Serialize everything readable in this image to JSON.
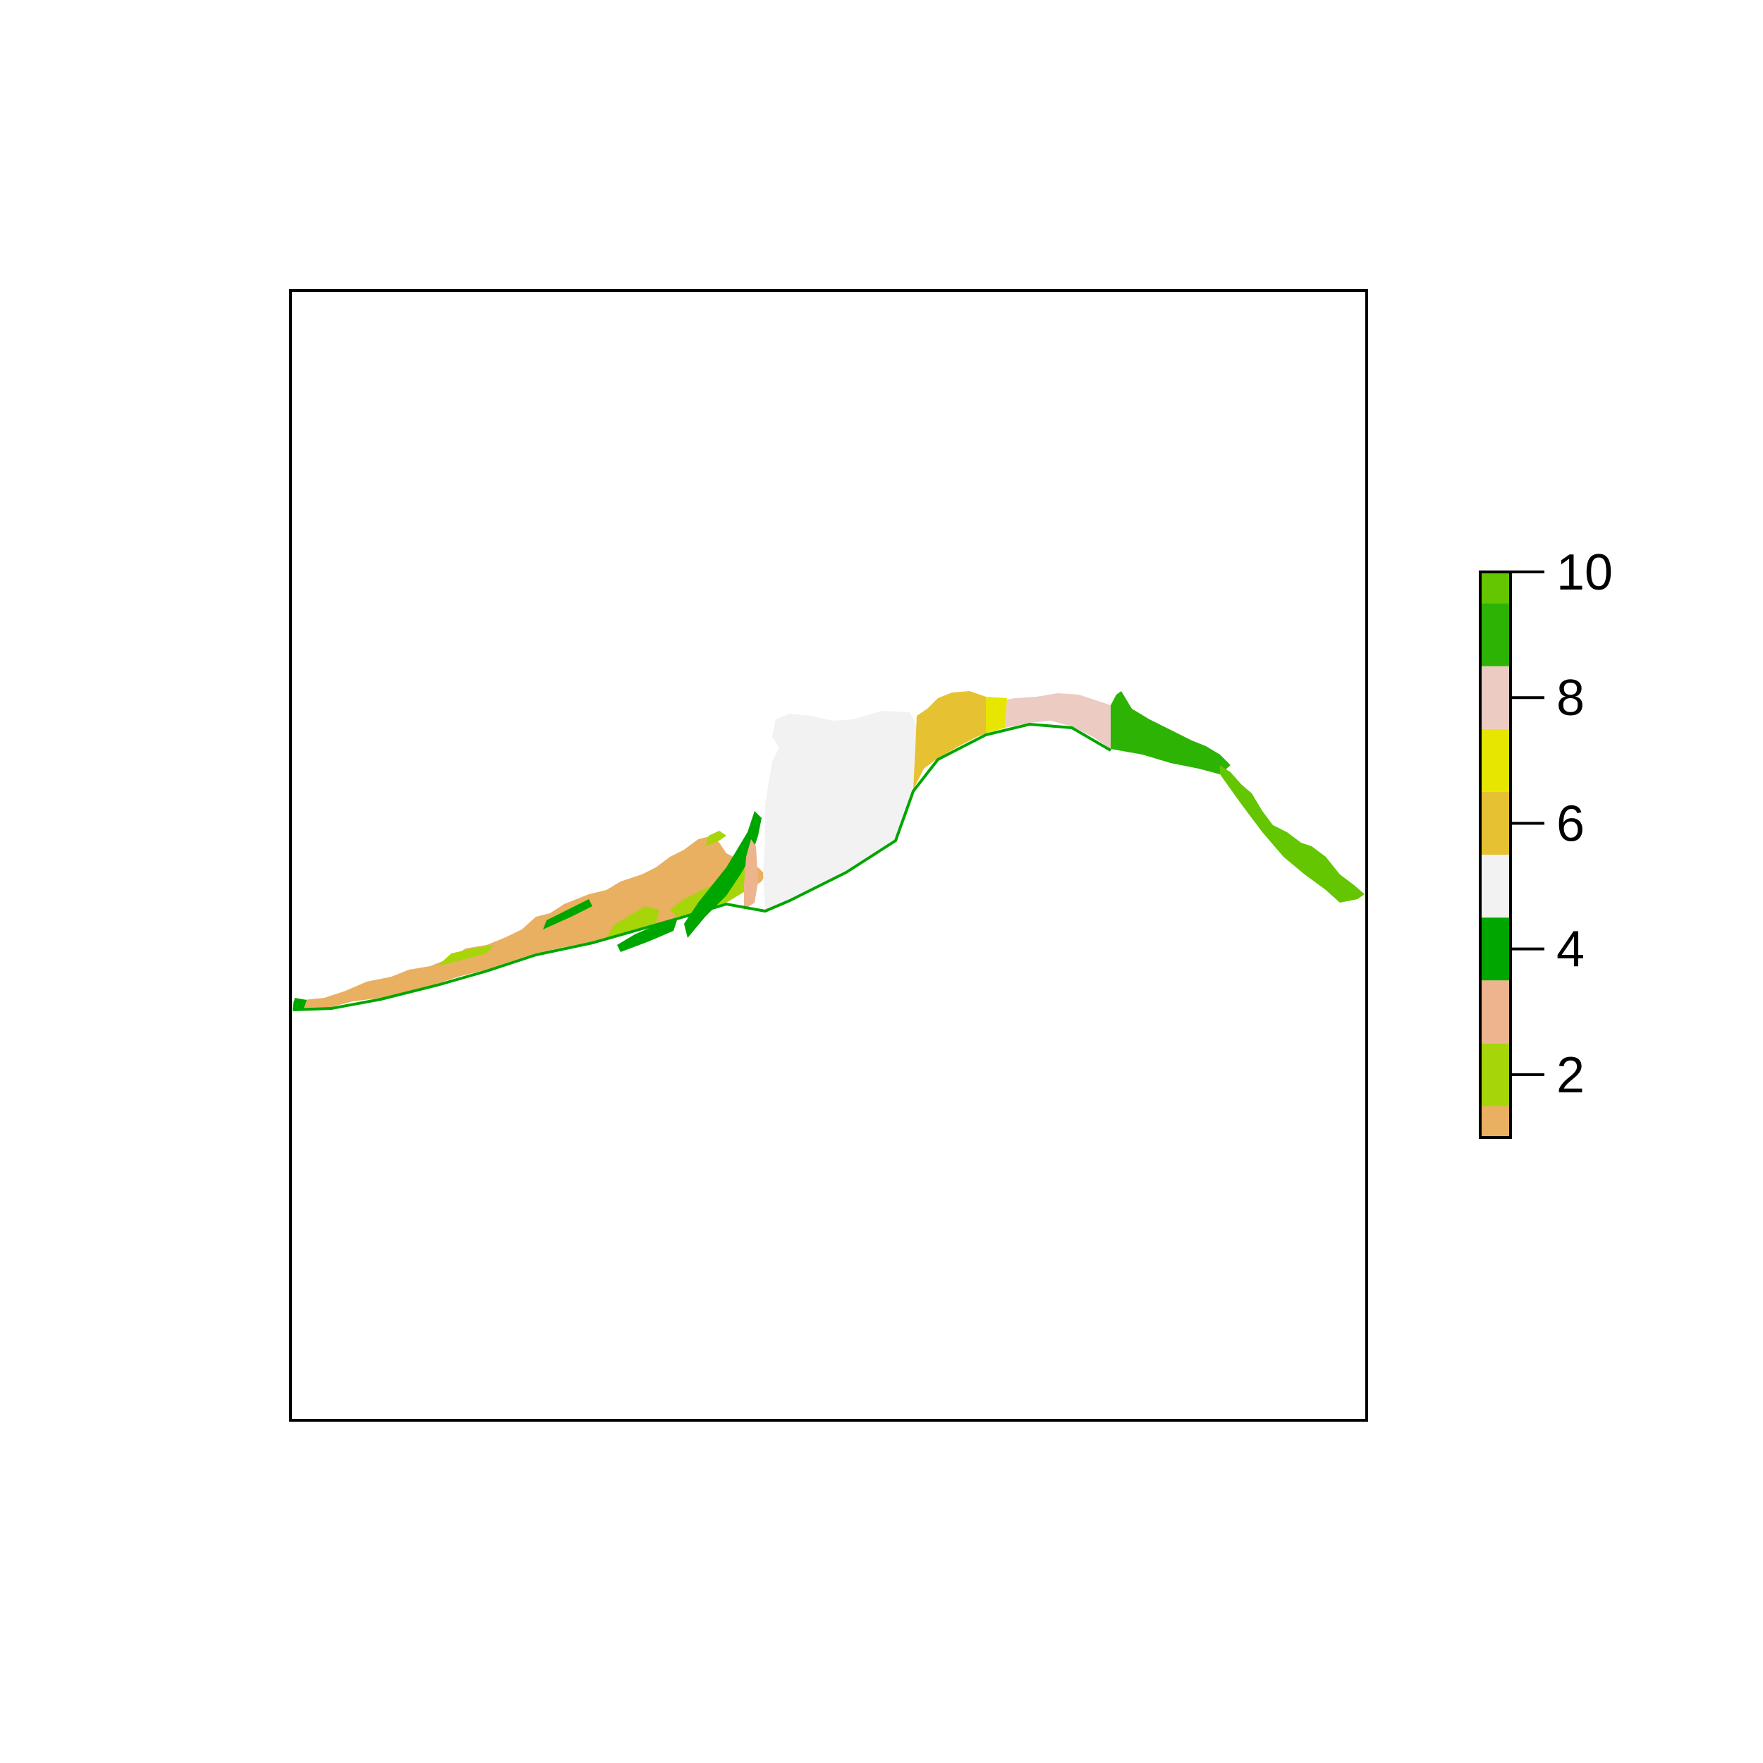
{
  "map": {
    "frame_visible": true,
    "classes": [
      {
        "value": 1,
        "color": "#E8B060"
      },
      {
        "value": 2,
        "color": "#A6D609"
      },
      {
        "value": 3,
        "color": "#EDB48E"
      },
      {
        "value": 4,
        "color": "#00A600"
      },
      {
        "value": 5,
        "color": "#F2F2F2"
      },
      {
        "value": 6,
        "color": "#E6C232"
      },
      {
        "value": 7,
        "color": "#E6E600"
      },
      {
        "value": 8,
        "color": "#ECCBC2"
      },
      {
        "value": 9,
        "color": "#2DB304"
      },
      {
        "value": 10,
        "color": "#63C600"
      }
    ],
    "regions": [
      {
        "name": "west-mixed-coast",
        "class": 1
      },
      {
        "name": "west-green-patches",
        "class": 2
      },
      {
        "name": "west-forest-strips",
        "class": 4
      },
      {
        "name": "central-grey-area",
        "class": 5
      },
      {
        "name": "central-gold-area",
        "class": 6
      },
      {
        "name": "central-yellow-strip",
        "class": 7
      },
      {
        "name": "central-pink-area",
        "class": 8
      },
      {
        "name": "east-green-area",
        "class": 9
      },
      {
        "name": "east-lime-area",
        "class": 10
      }
    ]
  },
  "legend": {
    "range": [
      1,
      10
    ],
    "ticks": [
      {
        "value": 2,
        "label": "2"
      },
      {
        "value": 4,
        "label": "4"
      },
      {
        "value": 6,
        "label": "6"
      },
      {
        "value": 8,
        "label": "8"
      },
      {
        "value": 10,
        "label": "10"
      }
    ]
  }
}
